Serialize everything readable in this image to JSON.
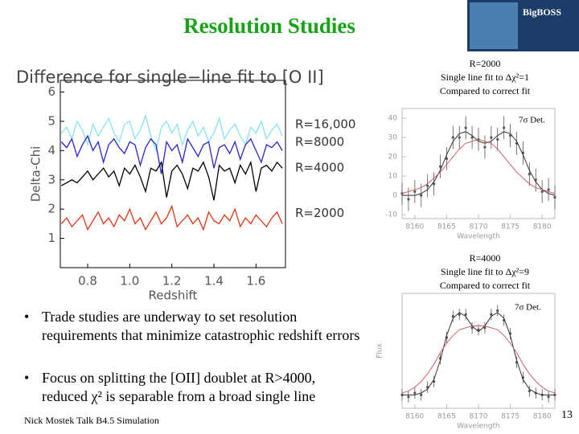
{
  "header": {
    "title": "Resolution Studies",
    "logo": "BigBOSS"
  },
  "chart_data": [
    {
      "type": "line",
      "title": "Difference for single−line fit to [O II]",
      "xlabel": "Redshift",
      "ylabel": "Delta-Chi",
      "xlim": [
        0.67,
        1.74
      ],
      "ylim": [
        0,
        6.4
      ],
      "xticks": [
        {
          "value": 0.8,
          "label": "0.8"
        },
        {
          "value": 1.0,
          "label": "1.0"
        },
        {
          "value": 1.2,
          "label": "1.2"
        },
        {
          "value": 1.4,
          "label": "1.4"
        },
        {
          "value": 1.6,
          "label": "1.6"
        }
      ],
      "yticks": [
        1,
        2,
        3,
        4,
        5,
        6
      ],
      "x": [
        0.675,
        0.7,
        0.725,
        0.75,
        0.775,
        0.8,
        0.825,
        0.85,
        0.875,
        0.9,
        0.925,
        0.95,
        0.975,
        1.0,
        1.025,
        1.05,
        1.075,
        1.1,
        1.125,
        1.15,
        1.175,
        1.2,
        1.225,
        1.25,
        1.275,
        1.3,
        1.325,
        1.35,
        1.375,
        1.4,
        1.425,
        1.45,
        1.475,
        1.5,
        1.525,
        1.55,
        1.575,
        1.6,
        1.625,
        1.65,
        1.675,
        1.7,
        1.725
      ],
      "series": [
        {
          "name": "R=16,000",
          "color": "#86e4f2",
          "values": [
            4.6,
            4.8,
            4.4,
            5.0,
            4.7,
            4.2,
            4.9,
            4.5,
            4.8,
            5.1,
            4.6,
            4.3,
            4.9,
            5.0,
            4.4,
            4.7,
            5.2,
            4.5,
            4.0,
            4.8,
            5.0,
            4.6,
            4.9,
            4.2,
            4.7,
            5.0,
            4.5,
            4.8,
            4.3,
            4.6,
            5.1,
            4.4,
            4.7,
            4.9,
            4.5,
            4.2,
            4.8,
            4.6,
            5.0,
            4.4,
            4.7,
            4.9,
            4.5
          ]
        },
        {
          "name": "R=8000",
          "color": "#2424d0",
          "values": [
            4.3,
            4.1,
            4.4,
            3.8,
            4.2,
            4.5,
            4.0,
            4.3,
            3.6,
            4.2,
            4.4,
            4.1,
            3.9,
            4.3,
            4.2,
            3.5,
            4.1,
            4.4,
            4.2,
            3.2,
            4.3,
            4.0,
            4.2,
            3.6,
            4.4,
            4.1,
            3.8,
            4.2,
            4.3,
            3.4,
            4.1,
            4.2,
            3.9,
            4.3,
            3.7,
            4.2,
            4.4,
            4.0,
            3.6,
            4.2,
            4.1,
            4.3,
            4.0
          ]
        },
        {
          "name": "R=4000",
          "color": "#000000",
          "values": [
            2.8,
            2.9,
            3.0,
            2.9,
            3.1,
            3.3,
            3.0,
            3.2,
            3.4,
            3.1,
            3.3,
            2.8,
            3.4,
            3.2,
            3.5,
            3.1,
            2.6,
            3.4,
            3.3,
            3.6,
            2.4,
            3.3,
            3.5,
            3.2,
            2.7,
            3.4,
            3.3,
            3.6,
            3.1,
            2.3,
            3.5,
            3.3,
            3.4,
            2.9,
            3.5,
            3.2,
            3.6,
            2.6,
            3.4,
            3.5,
            3.3,
            3.6,
            3.4
          ]
        },
        {
          "name": "R=2000",
          "color": "#e03412",
          "values": [
            1.5,
            1.7,
            1.4,
            1.6,
            1.8,
            1.3,
            1.6,
            1.9,
            1.5,
            1.7,
            1.4,
            1.8,
            1.6,
            2.0,
            1.5,
            1.7,
            1.3,
            1.6,
            1.9,
            1.5,
            1.7,
            2.1,
            1.4,
            1.6,
            1.8,
            1.5,
            1.7,
            1.3,
            1.9,
            1.6,
            1.5,
            1.8,
            1.6,
            2.0,
            1.4,
            1.7,
            1.5,
            1.8,
            1.6,
            1.4,
            1.7,
            1.9,
            1.5
          ]
        }
      ]
    },
    {
      "type": "line",
      "title": "R=2000",
      "subtitle": [
        "Single line fit to Δχ²=1",
        "Compared to correct fit"
      ],
      "xlabel": "Wavelength",
      "annotation": "7σ Det.",
      "xlim": [
        8158,
        8182
      ],
      "ylim": [
        -12,
        45
      ],
      "xticks": [
        8160,
        8165,
        8170,
        8175,
        8180
      ],
      "yticks": [
        -10,
        0,
        10,
        20,
        30,
        40
      ],
      "x": [
        8158,
        8159,
        8160,
        8161,
        8162,
        8163,
        8164,
        8165,
        8166,
        8167,
        8168,
        8169,
        8170,
        8171,
        8172,
        8173,
        8174,
        8175,
        8176,
        8177,
        8178,
        8179,
        8180,
        8181,
        8182
      ],
      "series": [
        {
          "color": "#555555",
          "values": [
            1,
            -2,
            2,
            0,
            5,
            6,
            15,
            19,
            30,
            30,
            35,
            30,
            29,
            25,
            30,
            29,
            35,
            31,
            27,
            22,
            11,
            8,
            2,
            3,
            -1
          ],
          "errors": [
            6,
            6,
            6,
            6,
            6,
            6,
            6,
            6,
            6,
            6,
            6,
            6,
            6,
            6,
            6,
            6,
            6,
            6,
            6,
            6,
            6,
            6,
            6,
            6,
            6
          ]
        },
        {
          "color": "#333333",
          "values": [
            0,
            0,
            0,
            1,
            3,
            7,
            13,
            21,
            28,
            32,
            33,
            31,
            28,
            27,
            28,
            31,
            33,
            32,
            28,
            21,
            13,
            7,
            3,
            1,
            0
          ]
        },
        {
          "color": "#d06060",
          "values": [
            1,
            2,
            3,
            4,
            6,
            9,
            12,
            16,
            20,
            24,
            27,
            28,
            29,
            28,
            27,
            24,
            20,
            16,
            12,
            9,
            6,
            4,
            3,
            2,
            1
          ]
        }
      ]
    },
    {
      "type": "line",
      "title": "R=4000",
      "subtitle": [
        "Single line fit to Δχ²=9",
        "Compared to correct fit"
      ],
      "xlabel": "Wavelength",
      "ylabel": "Flux",
      "annotation": "7σ Det.",
      "xlim": [
        8158,
        8182
      ],
      "ylim": [
        -5,
        55
      ],
      "xticks": [
        8160,
        8165,
        8170,
        8175,
        8180
      ],
      "x": [
        8158,
        8159,
        8160,
        8161,
        8162,
        8163,
        8164,
        8165,
        8166,
        8167,
        8168,
        8169,
        8170,
        8171,
        8172,
        8173,
        8174,
        8175,
        8176,
        8177,
        8178,
        8179,
        8180,
        8181,
        8182
      ],
      "series": [
        {
          "color": "#555555",
          "values": [
            2,
            1,
            3,
            2,
            6,
            9,
            21,
            32,
            43,
            44,
            44,
            37,
            36,
            37,
            44,
            46,
            41,
            34,
            19,
            11,
            4,
            3,
            2,
            1,
            2
          ],
          "errors": [
            3,
            3,
            3,
            3,
            3,
            3,
            3,
            3,
            3,
            3,
            3,
            3,
            3,
            3,
            3,
            3,
            3,
            3,
            3,
            3,
            3,
            3,
            3,
            3,
            3
          ]
        },
        {
          "color": "#333333",
          "values": [
            2,
            2,
            2,
            3,
            5,
            10,
            20,
            33,
            42,
            45,
            43,
            38,
            35,
            38,
            43,
            45,
            42,
            33,
            20,
            10,
            5,
            3,
            2,
            2,
            2
          ]
        },
        {
          "color": "#d06060",
          "values": [
            3,
            4,
            6,
            9,
            13,
            18,
            24,
            29,
            33,
            36,
            37,
            38,
            38,
            38,
            37,
            36,
            33,
            29,
            24,
            18,
            13,
            9,
            6,
            4,
            3
          ]
        }
      ]
    }
  ],
  "bullets": [
    "Trade studies are underway to set resolution requirements that minimize catastrophic redshift errors",
    "Focus on splitting the [OII] doublet at R>4000, reduced χ² is separable from a broad single line"
  ],
  "footer": "Nick Mostek Talk B4.5 Simulation",
  "page_number": "13"
}
